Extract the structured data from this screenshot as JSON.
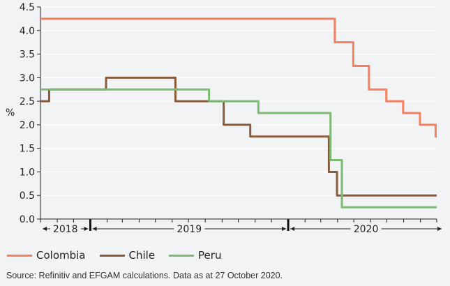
{
  "chart_data": {
    "type": "line",
    "step": true,
    "ylabel": "%",
    "ylim": [
      0,
      4.5
    ],
    "yticks": [
      "0.0",
      "0.5",
      "1.0",
      "1.5",
      "2.0",
      "2.5",
      "3.0",
      "3.5",
      "4.0",
      "4.5"
    ],
    "xlim": [
      "2018-10-01",
      "2020-10-01"
    ],
    "xticks_interval": "month",
    "year_labels": [
      "2018",
      "2019",
      "2020"
    ],
    "grid": "horizontal",
    "legend": "bottom",
    "series": [
      {
        "name": "Colombia",
        "color": "#f4805f",
        "points": [
          [
            "2018-10-01",
            4.25
          ],
          [
            "2020-03-27",
            3.75
          ],
          [
            "2020-04-30",
            3.25
          ],
          [
            "2020-05-29",
            2.75
          ],
          [
            "2020-06-30",
            2.5
          ],
          [
            "2020-07-31",
            2.25
          ],
          [
            "2020-08-31",
            2.0
          ],
          [
            "2020-09-29",
            1.75
          ],
          [
            "2020-10-01",
            1.75
          ]
        ]
      },
      {
        "name": "Chile",
        "color": "#8a5c3c",
        "points": [
          [
            "2018-10-01",
            2.5
          ],
          [
            "2018-10-17",
            2.75
          ],
          [
            "2019-01-30",
            3.0
          ],
          [
            "2019-06-07",
            2.5
          ],
          [
            "2019-09-04",
            2.0
          ],
          [
            "2019-10-23",
            1.75
          ],
          [
            "2020-03-16",
            1.0
          ],
          [
            "2020-03-31",
            0.5
          ],
          [
            "2020-10-01",
            0.5
          ]
        ]
      },
      {
        "name": "Peru",
        "color": "#7dbb74",
        "points": [
          [
            "2018-10-01",
            2.75
          ],
          [
            "2019-08-08",
            2.5
          ],
          [
            "2019-11-07",
            2.25
          ],
          [
            "2020-03-19",
            1.25
          ],
          [
            "2020-04-09",
            0.25
          ],
          [
            "2020-10-01",
            0.25
          ]
        ]
      }
    ]
  },
  "source": "Source: Refinitiv and EFGAM calculations. Data as at 27 October 2020."
}
